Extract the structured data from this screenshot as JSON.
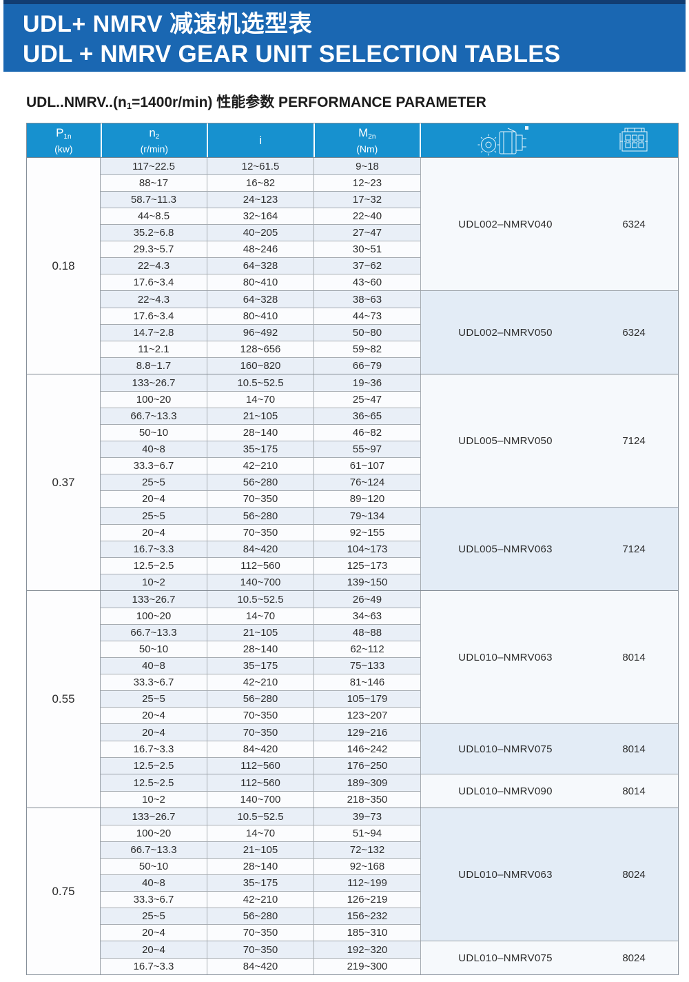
{
  "banner": {
    "title_zh": "UDL+ NMRV 减速机选型表",
    "title_en": "UDL + NMRV GEAR UNIT SELECTION TABLES"
  },
  "subtitle": {
    "pre": "UDL..NMRV..(n",
    "sub": "1",
    "post": "=1400r/min) 性能参数 PERFORMANCE PARAMETER"
  },
  "colors": {
    "banner_blue": "#1a67b2",
    "banner_top_edge": "#123d72",
    "header_blue": "#1791cf",
    "stripe_blue": "#e9eff7",
    "stripe_white": "#fbfcfe",
    "group_blue": "#e3ecf6",
    "group_white": "#f6f9fc"
  },
  "table": {
    "headers": [
      {
        "sym": "P",
        "sub": "1n",
        "unit": "(kw)"
      },
      {
        "sym": "n",
        "sub": "2",
        "unit": "(r/min)"
      },
      {
        "sym": "i",
        "sub": "",
        "unit": ""
      },
      {
        "sym": "M",
        "sub": "2n",
        "unit": "(Nm)"
      }
    ],
    "header_icons": [
      "worm-gearbox-drawing-icon",
      "bearing-drawing-icon"
    ],
    "sections": [
      {
        "power": "0.18",
        "groups": [
          {
            "model": "UDL002–NMRV040",
            "bearing": "6324",
            "shade": "white",
            "rows": [
              [
                "117~22.5",
                "12~61.5",
                "9~18"
              ],
              [
                "88~17",
                "16~82",
                "12~23"
              ],
              [
                "58.7~11.3",
                "24~123",
                "17~32"
              ],
              [
                "44~8.5",
                "32~164",
                "22~40"
              ],
              [
                "35.2~6.8",
                "40~205",
                "27~47"
              ],
              [
                "29.3~5.7",
                "48~246",
                "30~51"
              ],
              [
                "22~4.3",
                "64~328",
                "37~62"
              ],
              [
                "17.6~3.4",
                "80~410",
                "43~60"
              ]
            ]
          },
          {
            "model": "UDL002–NMRV050",
            "bearing": "6324",
            "shade": "blue",
            "rows": [
              [
                "22~4.3",
                "64~328",
                "38~63"
              ],
              [
                "17.6~3.4",
                "80~410",
                "44~73"
              ],
              [
                "14.7~2.8",
                "96~492",
                "50~80"
              ],
              [
                "11~2.1",
                "128~656",
                "59~82"
              ],
              [
                "8.8~1.7",
                "160~820",
                "66~79"
              ]
            ]
          }
        ]
      },
      {
        "power": "0.37",
        "groups": [
          {
            "model": "UDL005–NMRV050",
            "bearing": "7124",
            "shade": "white",
            "rows": [
              [
                "133~26.7",
                "10.5~52.5",
                "19~36"
              ],
              [
                "100~20",
                "14~70",
                "25~47"
              ],
              [
                "66.7~13.3",
                "21~105",
                "36~65"
              ],
              [
                "50~10",
                "28~140",
                "46~82"
              ],
              [
                "40~8",
                "35~175",
                "55~97"
              ],
              [
                "33.3~6.7",
                "42~210",
                "61~107"
              ],
              [
                "25~5",
                "56~280",
                "76~124"
              ],
              [
                "20~4",
                "70~350",
                "89~120"
              ]
            ]
          },
          {
            "model": "UDL005–NMRV063",
            "bearing": "7124",
            "shade": "blue",
            "rows": [
              [
                "25~5",
                "56~280",
                "79~134"
              ],
              [
                "20~4",
                "70~350",
                "92~155"
              ],
              [
                "16.7~3.3",
                "84~420",
                "104~173"
              ],
              [
                "12.5~2.5",
                "112~560",
                "125~173"
              ],
              [
                "10~2",
                "140~700",
                "139~150"
              ]
            ]
          }
        ]
      },
      {
        "power": "0.55",
        "groups": [
          {
            "model": "UDL010–NMRV063",
            "bearing": "8014",
            "shade": "white",
            "rows": [
              [
                "133~26.7",
                "10.5~52.5",
                "26~49"
              ],
              [
                "100~20",
                "14~70",
                "34~63"
              ],
              [
                "66.7~13.3",
                "21~105",
                "48~88"
              ],
              [
                "50~10",
                "28~140",
                "62~112"
              ],
              [
                "40~8",
                "35~175",
                "75~133"
              ],
              [
                "33.3~6.7",
                "42~210",
                "81~146"
              ],
              [
                "25~5",
                "56~280",
                "105~179"
              ],
              [
                "20~4",
                "70~350",
                "123~207"
              ]
            ]
          },
          {
            "model": "UDL010–NMRV075",
            "bearing": "8014",
            "shade": "blue",
            "rows": [
              [
                "20~4",
                "70~350",
                "129~216"
              ],
              [
                "16.7~3.3",
                "84~420",
                "146~242"
              ],
              [
                "12.5~2.5",
                "112~560",
                "176~250"
              ]
            ]
          },
          {
            "model": "UDL010–NMRV090",
            "bearing": "8014",
            "shade": "white",
            "rows": [
              [
                "12.5~2.5",
                "112~560",
                "189~309"
              ],
              [
                "10~2",
                "140~700",
                "218~350"
              ]
            ]
          }
        ]
      },
      {
        "power": "0.75",
        "groups": [
          {
            "model": "UDL010–NMRV063",
            "bearing": "8024",
            "shade": "blue",
            "rows": [
              [
                "133~26.7",
                "10.5~52.5",
                "39~73"
              ],
              [
                "100~20",
                "14~70",
                "51~94"
              ],
              [
                "66.7~13.3",
                "21~105",
                "72~132"
              ],
              [
                "50~10",
                "28~140",
                "92~168"
              ],
              [
                "40~8",
                "35~175",
                "112~199"
              ],
              [
                "33.3~6.7",
                "42~210",
                "126~219"
              ],
              [
                "25~5",
                "56~280",
                "156~232"
              ],
              [
                "20~4",
                "70~350",
                "185~310"
              ]
            ]
          },
          {
            "model": "UDL010–NMRV075",
            "bearing": "8024",
            "shade": "white",
            "rows": [
              [
                "20~4",
                "70~350",
                "192~320"
              ],
              [
                "16.7~3.3",
                "84~420",
                "219~300"
              ]
            ]
          }
        ]
      }
    ]
  }
}
